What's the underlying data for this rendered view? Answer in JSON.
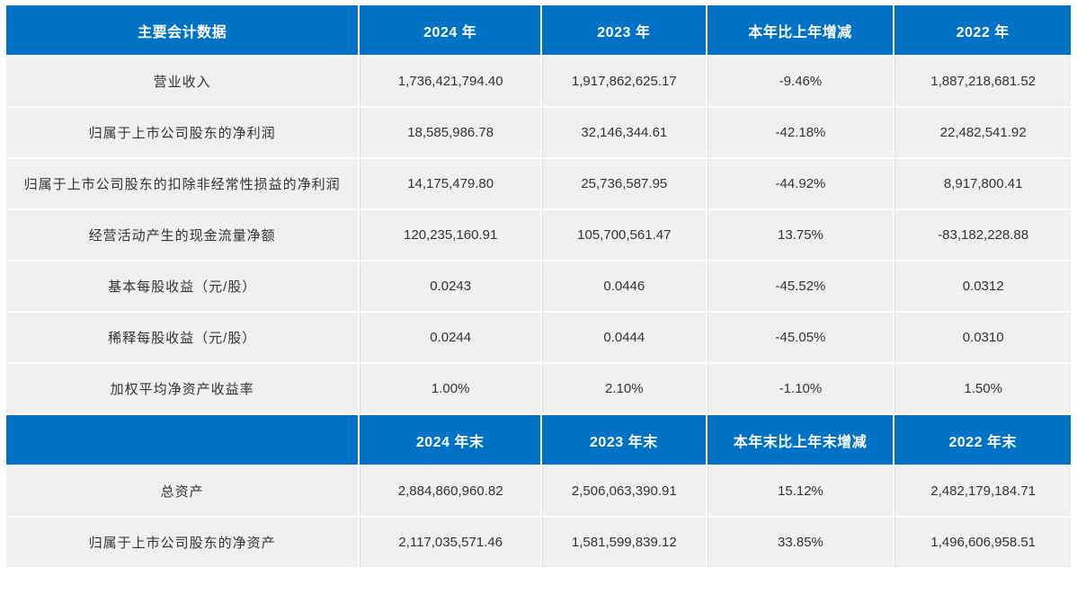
{
  "colors": {
    "header_bg": "#0072C6",
    "header_text": "#FFFFFF",
    "row_bg": "#F0F0F1",
    "cell_text": "#333333",
    "divider": "#DCDCDC"
  },
  "table": {
    "header1": {
      "col1": "主要会计数据",
      "col2": "2024 年",
      "col3": "2023 年",
      "col4": "本年比上年增减",
      "col5": "2022 年"
    },
    "rows1": [
      {
        "label": "营业收入",
        "values": [
          "1,736,421,794.40",
          "1,917,862,625.17",
          "-9.46%",
          "1,887,218,681.52"
        ]
      },
      {
        "label": "归属于上市公司股东的净利润",
        "values": [
          "18,585,986.78",
          "32,146,344.61",
          "-42.18%",
          "22,482,541.92"
        ]
      },
      {
        "label": "归属于上市公司股东的扣除非经常性损益的净利润",
        "values": [
          "14,175,479.80",
          "25,736,587.95",
          "-44.92%",
          "8,917,800.41"
        ]
      },
      {
        "label": "经营活动产生的现金流量净额",
        "values": [
          "120,235,160.91",
          "105,700,561.47",
          "13.75%",
          "-83,182,228.88"
        ]
      },
      {
        "label": "基本每股收益（元/股）",
        "values": [
          "0.0243",
          "0.0446",
          "-45.52%",
          "0.0312"
        ]
      },
      {
        "label": "稀释每股收益（元/股）",
        "values": [
          "0.0244",
          "0.0444",
          "-45.05%",
          "0.0310"
        ]
      },
      {
        "label": "加权平均净资产收益率",
        "values": [
          "1.00%",
          "2.10%",
          "-1.10%",
          "1.50%"
        ]
      }
    ],
    "header2": {
      "col1": "",
      "col2": "2024 年末",
      "col3": "2023 年末",
      "col4": "本年末比上年末增减",
      "col5": "2022 年末"
    },
    "rows2": [
      {
        "label": "总资产",
        "values": [
          "2,884,860,960.82",
          "2,506,063,390.91",
          "15.12%",
          "2,482,179,184.71"
        ]
      },
      {
        "label": "归属于上市公司股东的净资产",
        "values": [
          "2,117,035,571.46",
          "1,581,599,839.12",
          "33.85%",
          "1,496,606,958.51"
        ]
      }
    ]
  }
}
